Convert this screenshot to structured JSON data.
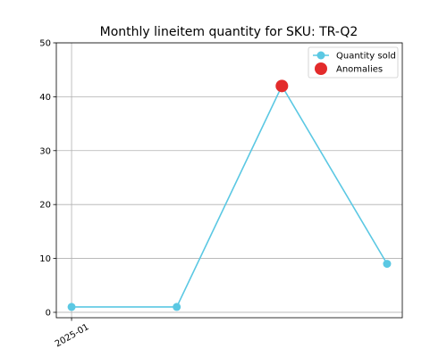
{
  "chart_data": {
    "type": "line",
    "title": "Monthly lineitem quantity for SKU: TR-Q2",
    "xlabel": "",
    "ylabel": "",
    "x": [
      0,
      1,
      2,
      3
    ],
    "x_tick_labels": [
      {
        "x": 0,
        "label": "2025-01"
      }
    ],
    "ylim": [
      -1,
      50
    ],
    "yticks": [
      0,
      10,
      20,
      30,
      40,
      50
    ],
    "grid": true,
    "legend_position": "top-right",
    "series": [
      {
        "name": "Quantity sold",
        "color": "#5bc8e3",
        "marker": "circle",
        "values": [
          1,
          1,
          42,
          9
        ]
      },
      {
        "name": "Anomalies",
        "color": "#e32b2b",
        "marker": "large-circle",
        "points": [
          {
            "x": 2,
            "y": 42
          }
        ]
      }
    ]
  }
}
